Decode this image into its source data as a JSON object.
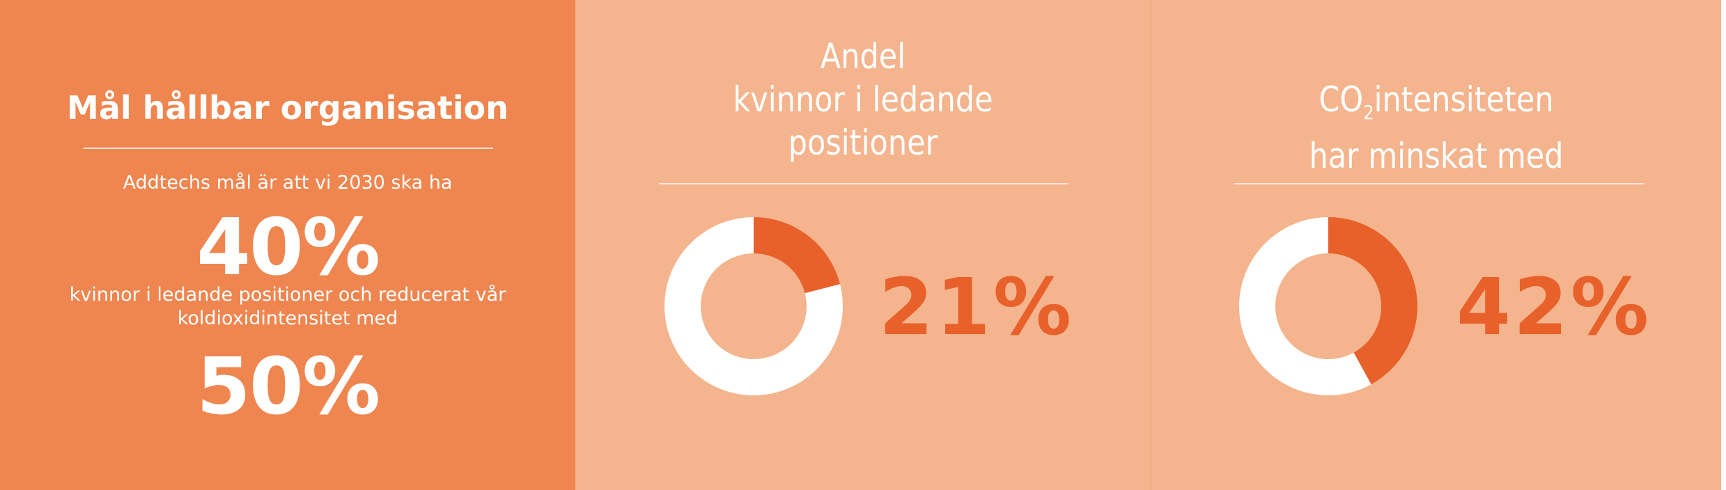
{
  "goal_panel": {
    "title": "Mål hållbar organisation",
    "intro": "Addtechs mål är att vi 2030 ska ha",
    "value_1": "40%",
    "middle_line_1": "kvinnor i ledande positioner och reducerat vår",
    "middle_line_2": "koldioxidintensitet med",
    "value_2": "50%"
  },
  "women_panel": {
    "title_lines": [
      "Andel",
      "kvinnor i ledande",
      "positioner"
    ],
    "value_label": "21%",
    "value": 21
  },
  "co2_panel": {
    "title_prefix": "CO",
    "title_subscript": "2",
    "title_rest": "intensiteten",
    "title_line_2": "har minskat med",
    "value_label": "42%",
    "value": 42
  },
  "colors": {
    "goal_bg": "#ef854f",
    "panel_bg": "#f4b48d",
    "accent": "#e8602a",
    "donut_rest": "#ffffff"
  }
}
